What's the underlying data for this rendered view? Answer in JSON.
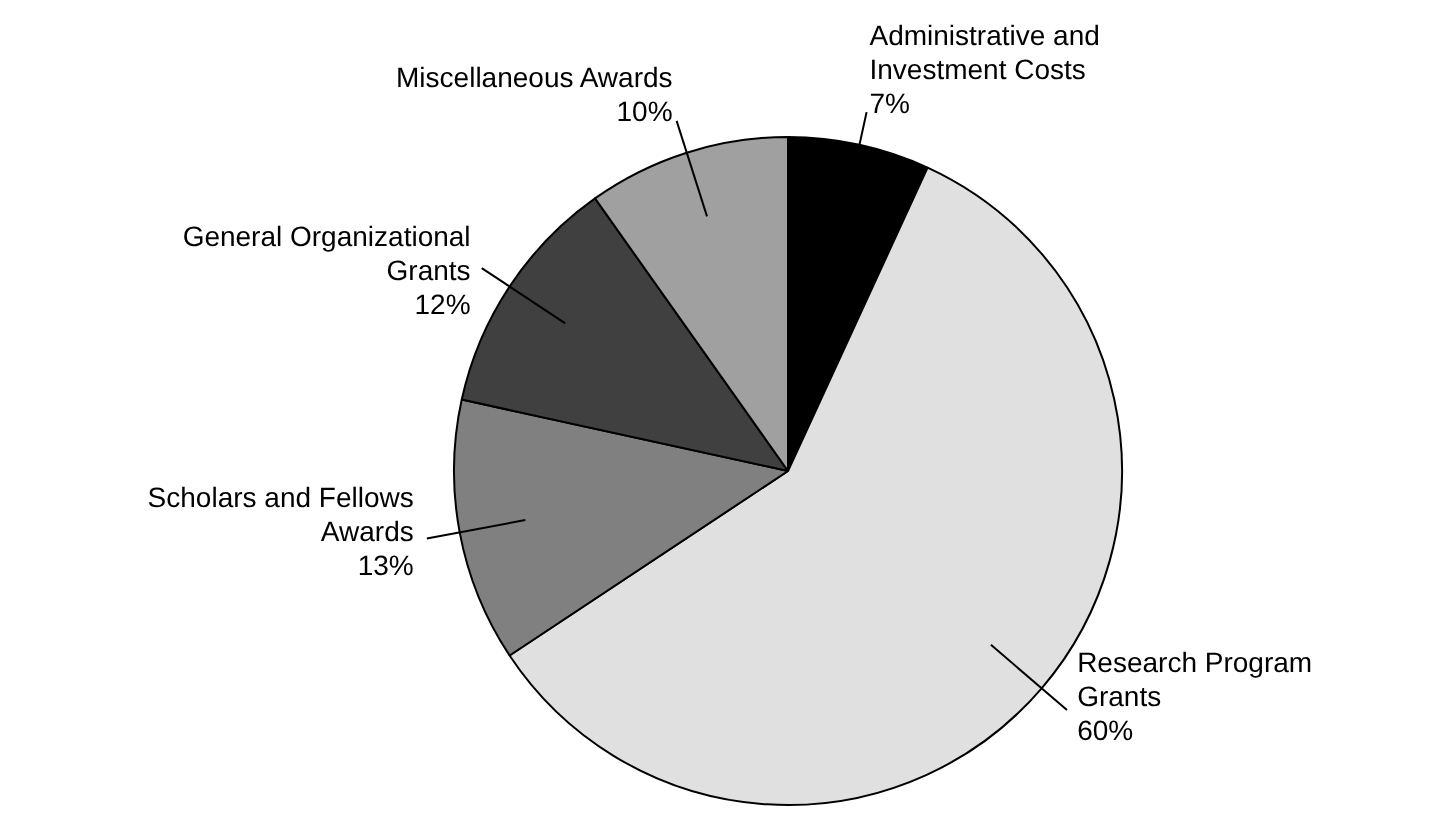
{
  "chart_data": {
    "type": "pie",
    "categories": [
      "Administrative and Investment Costs",
      "Research Program Grants",
      "Scholars and Fellows Awards",
      "General Organizational Grants",
      "Miscellaneous Awards"
    ],
    "values": [
      7,
      60,
      13,
      12,
      10
    ],
    "value_labels": [
      "7%",
      "60%",
      "13%",
      "12%",
      "10%"
    ],
    "colors": [
      "#000000",
      "#e0e0e0",
      "#808080",
      "#404040",
      "#a0a0a0"
    ],
    "legend": false
  }
}
